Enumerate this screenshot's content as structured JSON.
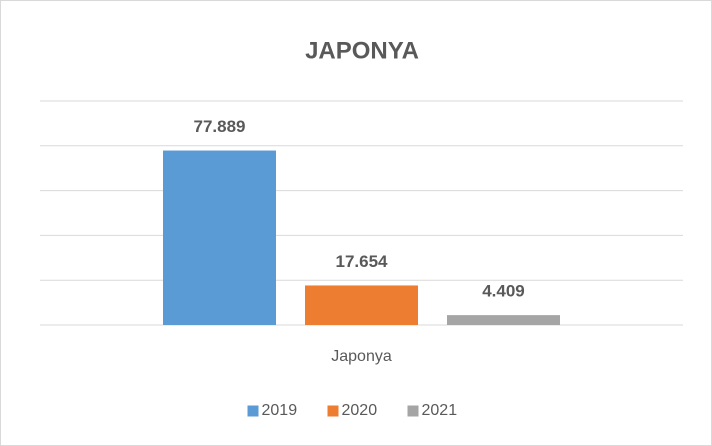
{
  "chart_data": {
    "type": "bar",
    "title": "JAPONYA",
    "categories": [
      "Japonya"
    ],
    "series": [
      {
        "name": "2019",
        "color": "#5b9bd5",
        "values": [
          77889
        ],
        "value_labels": [
          "77.889"
        ]
      },
      {
        "name": "2020",
        "color": "#ed7d31",
        "values": [
          17654
        ],
        "value_labels": [
          "17.654"
        ]
      },
      {
        "name": "2021",
        "color": "#a5a5a5",
        "values": [
          4409
        ],
        "value_labels": [
          "4.409"
        ]
      }
    ],
    "ylim": [
      0,
      100000
    ],
    "yticks": [
      0,
      20000,
      40000,
      60000,
      80000,
      100000
    ],
    "grid": true,
    "legend": "bottom"
  }
}
